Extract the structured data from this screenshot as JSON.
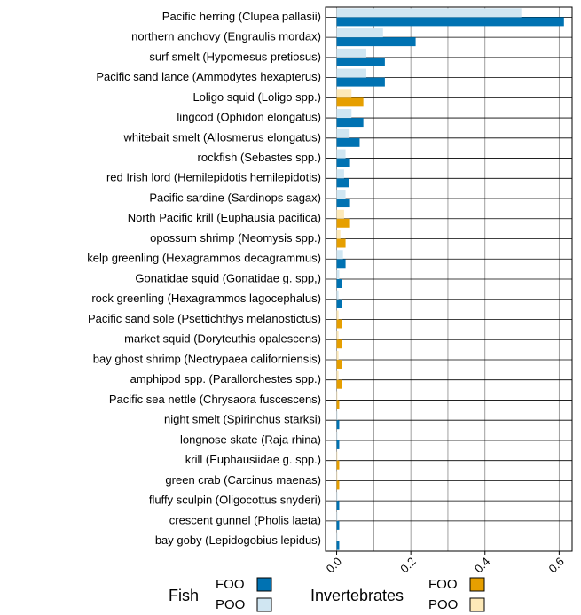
{
  "chart_data": {
    "type": "barh",
    "categories": [
      "Pacific herring (Clupea pallasii)",
      "northern anchovy (Engraulis mordax)",
      "surf smelt (Hypomesus pretiosus)",
      "Pacific sand lance (Ammodytes hexapterus)",
      "Loligo squid (Loligo spp.)",
      "lingcod (Ophidon elongatus)",
      "whitebait smelt (Allosmerus elongatus)",
      "rockfish (Sebastes spp.)",
      "red Irish lord (Hemilepidotis hemilepidotis)",
      "Pacific sardine (Sardinops sagax)",
      "North Pacific krill (Euphausia pacifica)",
      "opossum shrimp (Neomysis spp.)",
      "kelp greenling (Hexagrammos decagrammus)",
      "Gonatidae squid (Gonatidae g. spp,)",
      "rock greenling (Hexagrammos lagocephalus)",
      "Pacific sand sole (Psettichthys melanostictus)",
      "market squid (Doryteuthis opalescens)",
      "bay ghost shrimp (Neotrypaea californiensis)",
      "amphipod spp. (Parallorchestes spp.)",
      "Pacific sea nettle (Chrysaora fuscescens)",
      "night smelt (Spirinchus starksi)",
      "longnose skate (Raja rhina)",
      "krill (Euphausiidae g. spp.)",
      "green crab (Carcinus maenas)",
      "fluffy sculpin (Oligocottus snyderi)",
      "crescent gunnel (Pholis laeta)",
      "bay goby (Lepidogobius lepidus)"
    ],
    "series": [
      {
        "group": "Fish",
        "name": "FOO",
        "color": "#0072b2",
        "values": [
          0.613,
          0.213,
          0.13,
          0.13,
          null,
          0.072,
          0.062,
          0.036,
          0.034,
          0.036,
          null,
          null,
          0.024,
          0.014,
          0.014,
          null,
          null,
          null,
          null,
          null,
          0.007,
          0.007,
          null,
          null,
          0.007,
          0.007,
          0.007
        ]
      },
      {
        "group": "Fish",
        "name": "POO",
        "color": "#d0e6f2",
        "values": [
          0.498,
          0.125,
          0.08,
          0.08,
          null,
          0.04,
          0.035,
          0.024,
          0.02,
          0.024,
          null,
          null,
          0.017,
          0.007,
          0.005,
          null,
          null,
          null,
          null,
          null,
          0.002,
          0.002,
          null,
          null,
          0.002,
          0.002,
          0.002
        ]
      },
      {
        "group": "Invertebrates",
        "name": "FOO",
        "color": "#e69f00",
        "values": [
          null,
          null,
          null,
          null,
          0.072,
          null,
          null,
          null,
          null,
          null,
          0.036,
          0.024,
          null,
          null,
          null,
          0.014,
          0.014,
          0.014,
          0.014,
          0.007,
          null,
          null,
          0.007,
          0.007,
          null,
          null,
          null
        ]
      },
      {
        "group": "Invertebrates",
        "name": "POO",
        "color": "#fde9b8",
        "values": [
          null,
          null,
          null,
          null,
          0.04,
          null,
          null,
          null,
          null,
          null,
          0.02,
          0.01,
          null,
          null,
          null,
          0.005,
          0.005,
          0.005,
          0.005,
          0.002,
          null,
          null,
          0.002,
          0.002,
          null,
          null,
          null
        ]
      }
    ],
    "xlim": [
      -0.03,
      0.635
    ],
    "xticks": [
      {
        "value": 0,
        "label": "0.0"
      },
      0.2,
      0.4,
      0.6
    ],
    "xgrid": [
      0,
      0.1,
      0.2,
      0.3,
      0.4,
      0.5,
      0.6
    ],
    "ygrid": true
  }
}
